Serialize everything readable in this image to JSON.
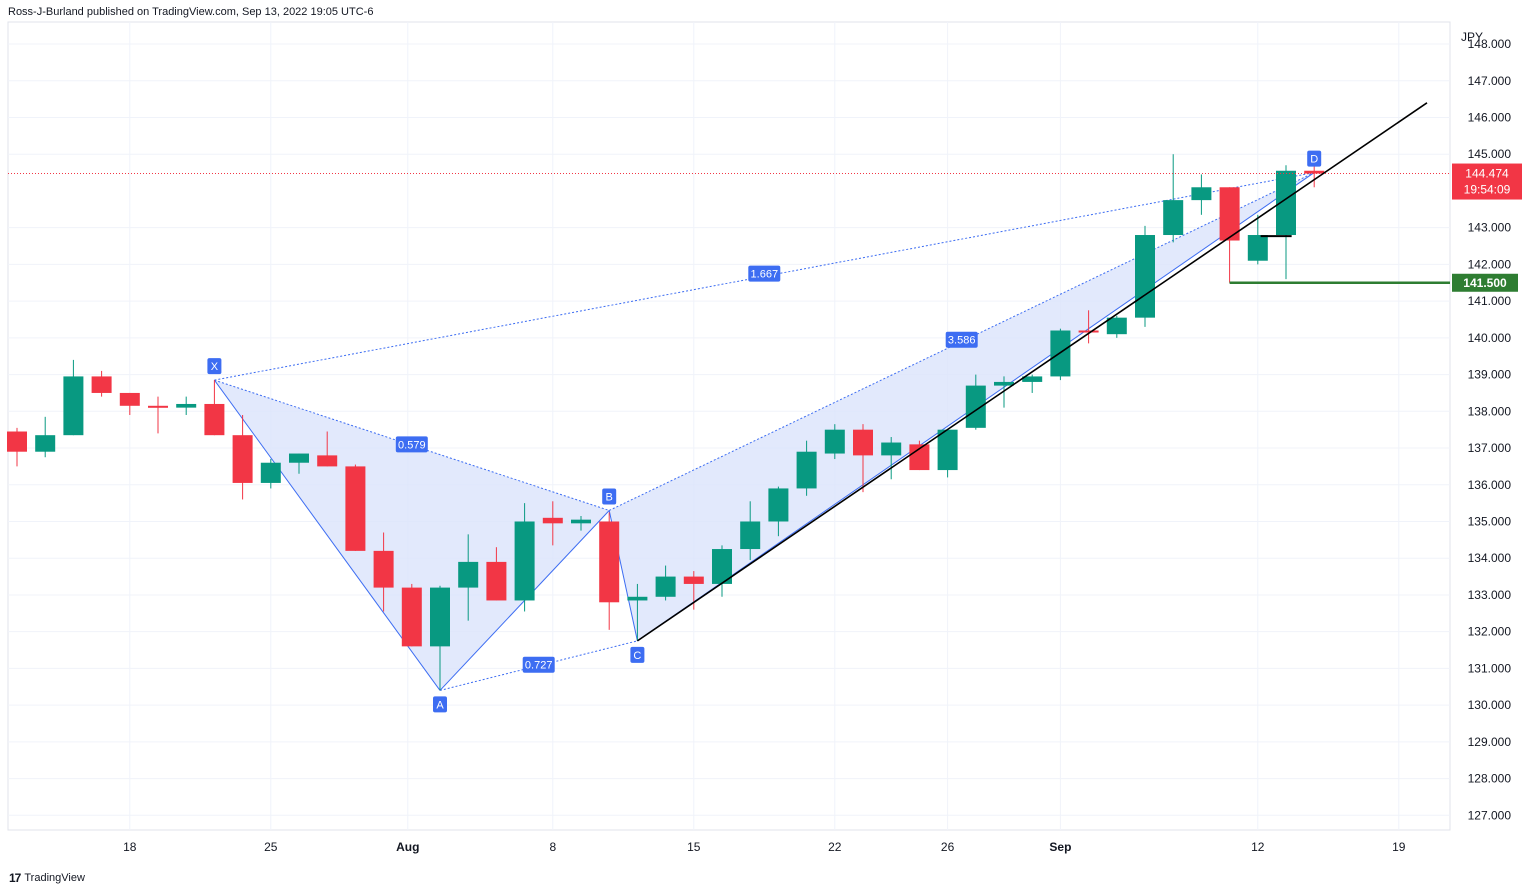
{
  "header": {
    "publisher": "Ross-J-Burland published on TradingView.com, Sep 13, 2022 19:05 UTC-6"
  },
  "footer": {
    "brand": "TradingView",
    "logo_glyph": "17"
  },
  "colors": {
    "up": "#089981",
    "down": "#f23645",
    "pattern_fill": "#dbe3fb",
    "pattern_line": "#3d6df2",
    "support": "#000000",
    "level": "#2e7d32"
  },
  "chart_data": {
    "type": "candlestick",
    "currency": "JPY",
    "ylim": [
      126.6,
      148.6
    ],
    "yticks": [
      "148.000",
      "147.000",
      "146.000",
      "145.000",
      "143.000",
      "142.000",
      "141.000",
      "140.000",
      "139.000",
      "138.000",
      "137.000",
      "136.000",
      "135.000",
      "134.000",
      "133.000",
      "132.000",
      "131.000",
      "130.000",
      "129.000",
      "128.000",
      "127.000"
    ],
    "xticks": [
      {
        "label": "18",
        "index": 4
      },
      {
        "label": "25",
        "index": 9
      },
      {
        "label": "Aug",
        "index": 14
      },
      {
        "label": "8",
        "index": 19
      },
      {
        "label": "15",
        "index": 24
      },
      {
        "label": "22",
        "index": 29
      },
      {
        "label": "26",
        "index": 33
      },
      {
        "label": "Sep",
        "index": 37
      },
      {
        "label": "12",
        "index": 44
      },
      {
        "label": "19",
        "index": 49
      }
    ],
    "candles": [
      {
        "i": 0,
        "o": 137.45,
        "h": 137.55,
        "l": 136.5,
        "c": 136.9
      },
      {
        "i": 1,
        "o": 136.9,
        "h": 137.85,
        "l": 136.75,
        "c": 137.35
      },
      {
        "i": 2,
        "o": 137.35,
        "h": 139.4,
        "l": 137.35,
        "c": 138.95
      },
      {
        "i": 3,
        "o": 138.95,
        "h": 139.1,
        "l": 138.4,
        "c": 138.5
      },
      {
        "i": 4,
        "o": 138.5,
        "h": 138.5,
        "l": 137.9,
        "c": 138.15
      },
      {
        "i": 5,
        "o": 138.15,
        "h": 138.4,
        "l": 137.4,
        "c": 138.1
      },
      {
        "i": 6,
        "o": 138.1,
        "h": 138.4,
        "l": 137.9,
        "c": 138.2
      },
      {
        "i": 7,
        "o": 138.2,
        "h": 138.85,
        "l": 137.35,
        "c": 137.35
      },
      {
        "i": 8,
        "o": 137.35,
        "h": 137.9,
        "l": 135.6,
        "c": 136.05
      },
      {
        "i": 9,
        "o": 136.05,
        "h": 136.7,
        "l": 135.9,
        "c": 136.6
      },
      {
        "i": 10,
        "o": 136.6,
        "h": 136.85,
        "l": 136.3,
        "c": 136.85
      },
      {
        "i": 11,
        "o": 136.8,
        "h": 137.45,
        "l": 136.5,
        "c": 136.5
      },
      {
        "i": 12,
        "o": 136.5,
        "h": 136.55,
        "l": 134.2,
        "c": 134.2
      },
      {
        "i": 13,
        "o": 134.2,
        "h": 134.7,
        "l": 132.55,
        "c": 133.2
      },
      {
        "i": 14,
        "o": 133.2,
        "h": 133.3,
        "l": 131.6,
        "c": 131.6
      },
      {
        "i": 15,
        "o": 131.6,
        "h": 133.25,
        "l": 130.4,
        "c": 133.2
      },
      {
        "i": 16,
        "o": 133.2,
        "h": 134.65,
        "l": 132.3,
        "c": 133.9
      },
      {
        "i": 17,
        "o": 133.9,
        "h": 134.3,
        "l": 132.85,
        "c": 132.85
      },
      {
        "i": 18,
        "o": 132.85,
        "h": 135.5,
        "l": 132.55,
        "c": 135.0
      },
      {
        "i": 19,
        "o": 135.1,
        "h": 135.55,
        "l": 134.35,
        "c": 134.95
      },
      {
        "i": 20,
        "o": 134.95,
        "h": 135.15,
        "l": 134.75,
        "c": 135.05
      },
      {
        "i": 21,
        "o": 135.0,
        "h": 135.25,
        "l": 132.05,
        "c": 132.8
      },
      {
        "i": 22,
        "o": 132.85,
        "h": 133.3,
        "l": 131.75,
        "c": 132.95
      },
      {
        "i": 23,
        "o": 132.95,
        "h": 133.8,
        "l": 132.85,
        "c": 133.5
      },
      {
        "i": 24,
        "o": 133.5,
        "h": 133.65,
        "l": 132.6,
        "c": 133.3
      },
      {
        "i": 25,
        "o": 133.3,
        "h": 134.35,
        "l": 132.95,
        "c": 134.25
      },
      {
        "i": 26,
        "o": 134.25,
        "h": 135.55,
        "l": 133.95,
        "c": 135.0
      },
      {
        "i": 27,
        "o": 135.0,
        "h": 135.95,
        "l": 134.6,
        "c": 135.9
      },
      {
        "i": 28,
        "o": 135.9,
        "h": 137.2,
        "l": 135.7,
        "c": 136.9
      },
      {
        "i": 29,
        "o": 136.85,
        "h": 137.65,
        "l": 136.7,
        "c": 137.5
      },
      {
        "i": 30,
        "o": 137.5,
        "h": 137.65,
        "l": 135.8,
        "c": 136.8
      },
      {
        "i": 31,
        "o": 136.8,
        "h": 137.3,
        "l": 136.15,
        "c": 137.15
      },
      {
        "i": 32,
        "o": 137.1,
        "h": 137.2,
        "l": 136.4,
        "c": 136.4
      },
      {
        "i": 33,
        "o": 136.4,
        "h": 137.5,
        "l": 136.2,
        "c": 137.5
      },
      {
        "i": 34,
        "o": 137.55,
        "h": 139.0,
        "l": 137.5,
        "c": 138.7
      },
      {
        "i": 35,
        "o": 138.7,
        "h": 138.95,
        "l": 138.1,
        "c": 138.8
      },
      {
        "i": 36,
        "o": 138.8,
        "h": 139.0,
        "l": 138.5,
        "c": 138.95
      },
      {
        "i": 37,
        "o": 138.95,
        "h": 140.25,
        "l": 138.85,
        "c": 140.2
      },
      {
        "i": 38,
        "o": 140.2,
        "h": 140.75,
        "l": 139.85,
        "c": 140.15
      },
      {
        "i": 39,
        "o": 140.1,
        "h": 140.6,
        "l": 140.0,
        "c": 140.55
      },
      {
        "i": 40,
        "o": 140.55,
        "h": 143.05,
        "l": 140.3,
        "c": 142.8
      },
      {
        "i": 41,
        "o": 142.8,
        "h": 145.0,
        "l": 142.6,
        "c": 143.75
      },
      {
        "i": 42,
        "o": 143.75,
        "h": 144.45,
        "l": 143.35,
        "c": 144.1
      },
      {
        "i": 43,
        "o": 144.1,
        "h": 144.1,
        "l": 141.5,
        "c": 142.65
      },
      {
        "i": 44,
        "o": 142.1,
        "h": 143.35,
        "l": 142.0,
        "c": 142.8
      },
      {
        "i": 45,
        "o": 142.8,
        "h": 144.7,
        "l": 141.6,
        "c": 144.55
      },
      {
        "i": 46,
        "o": 144.55,
        "h": 144.7,
        "l": 144.1,
        "c": 144.474
      }
    ],
    "pattern_points": [
      {
        "label": "X",
        "index": 7,
        "price": 138.85
      },
      {
        "label": "A",
        "index": 15,
        "price": 130.4
      },
      {
        "label": "B",
        "index": 21,
        "price": 135.3
      },
      {
        "label": "C",
        "index": 22,
        "price": 131.75
      },
      {
        "label": "D",
        "index": 46,
        "price": 144.5
      }
    ],
    "ratios": [
      {
        "label": "1.667",
        "index": 26.5,
        "price": 141.75
      },
      {
        "label": "0.579",
        "index": 14,
        "price": 137.1
      },
      {
        "label": "0.727",
        "index": 18.5,
        "price": 131.1
      },
      {
        "label": "3.586",
        "index": 33.5,
        "price": 139.95
      }
    ],
    "current_price": "144.474",
    "countdown": "19:54:09",
    "level_label": "141.500",
    "support_line": {
      "start": {
        "index": 22,
        "price": 131.75
      },
      "end": {
        "index": 50,
        "price": 146.4
      }
    },
    "level_line": {
      "start": {
        "index": 43,
        "price": 141.5
      },
      "price": 141.5
    },
    "small_level": {
      "start": {
        "index": 44.1,
        "price": 142.77
      },
      "end": {
        "index": 45.2,
        "price": 142.77
      }
    }
  }
}
